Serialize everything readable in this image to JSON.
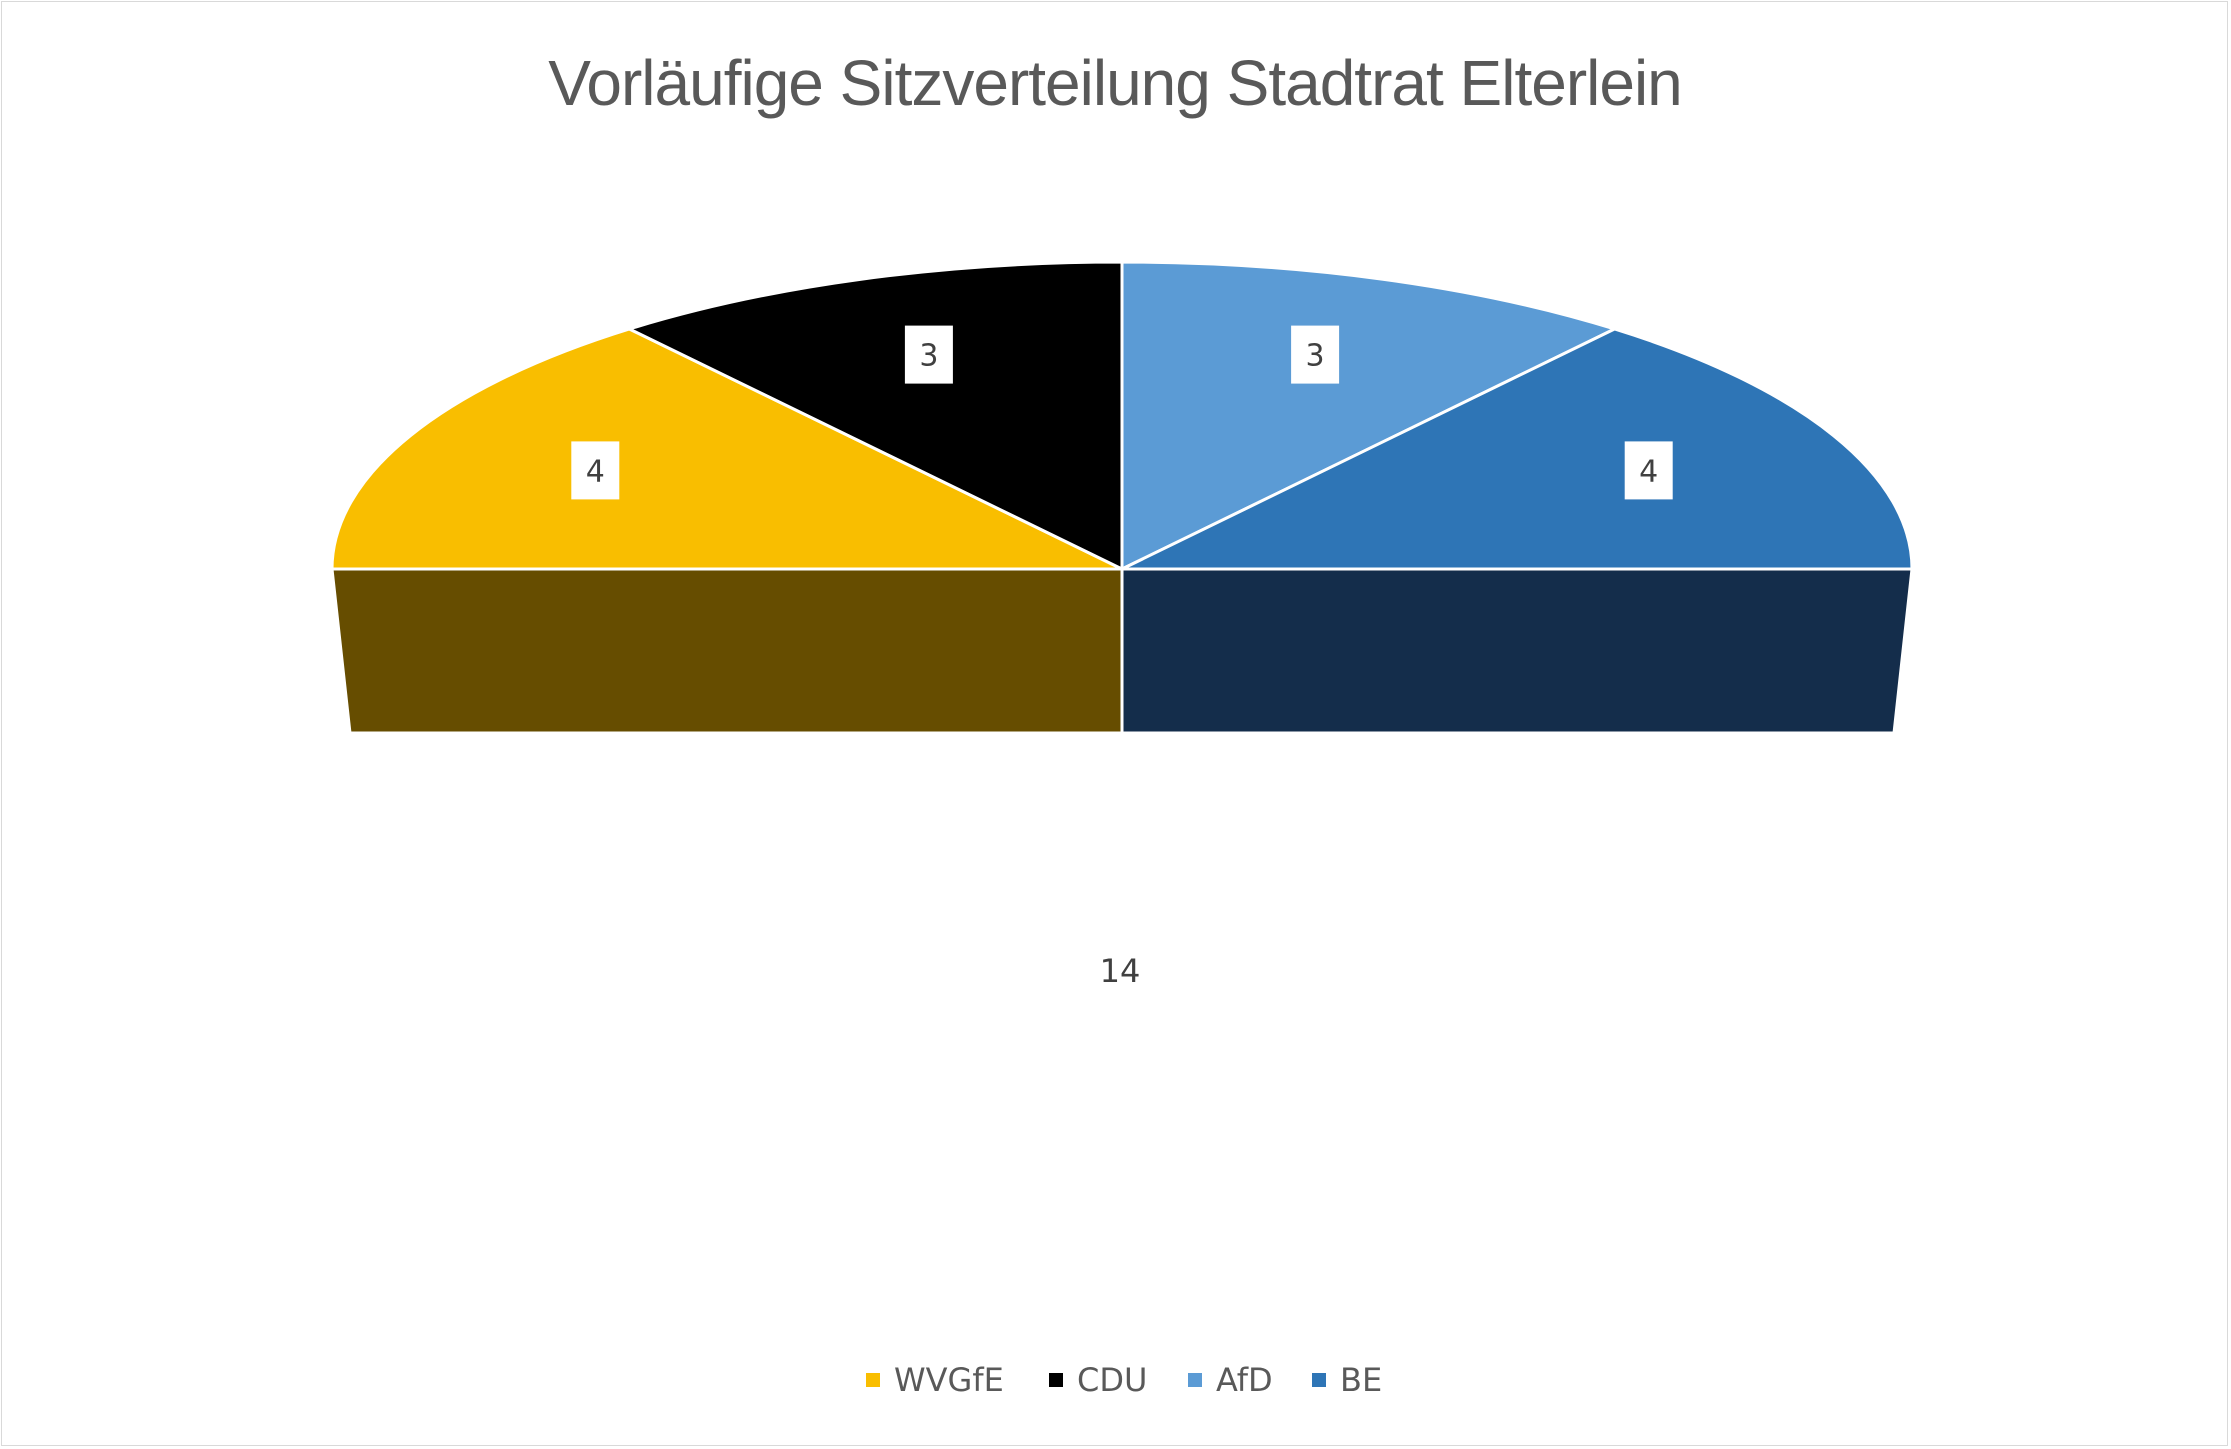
{
  "chart_data": {
    "type": "pie",
    "variant": "half-donut-3d",
    "title": "Vorläufige Sitzverteilung Stadtrat Elterlein",
    "categories": [
      "WVGfE",
      "CDU",
      "AfD",
      "BE"
    ],
    "values": [
      4,
      3,
      3,
      4
    ],
    "total_label": "14",
    "colors": [
      "#F9BE00",
      "#000000",
      "#5B9BD5",
      "#2E75B6"
    ],
    "base_colors": [
      "#664D00",
      "#142D4B"
    ],
    "legend": {
      "position": "bottom",
      "entries": [
        "WVGfE",
        "CDU",
        "AfD",
        "BE"
      ]
    },
    "data_labels": [
      "4",
      "3",
      "3",
      "4"
    ]
  }
}
